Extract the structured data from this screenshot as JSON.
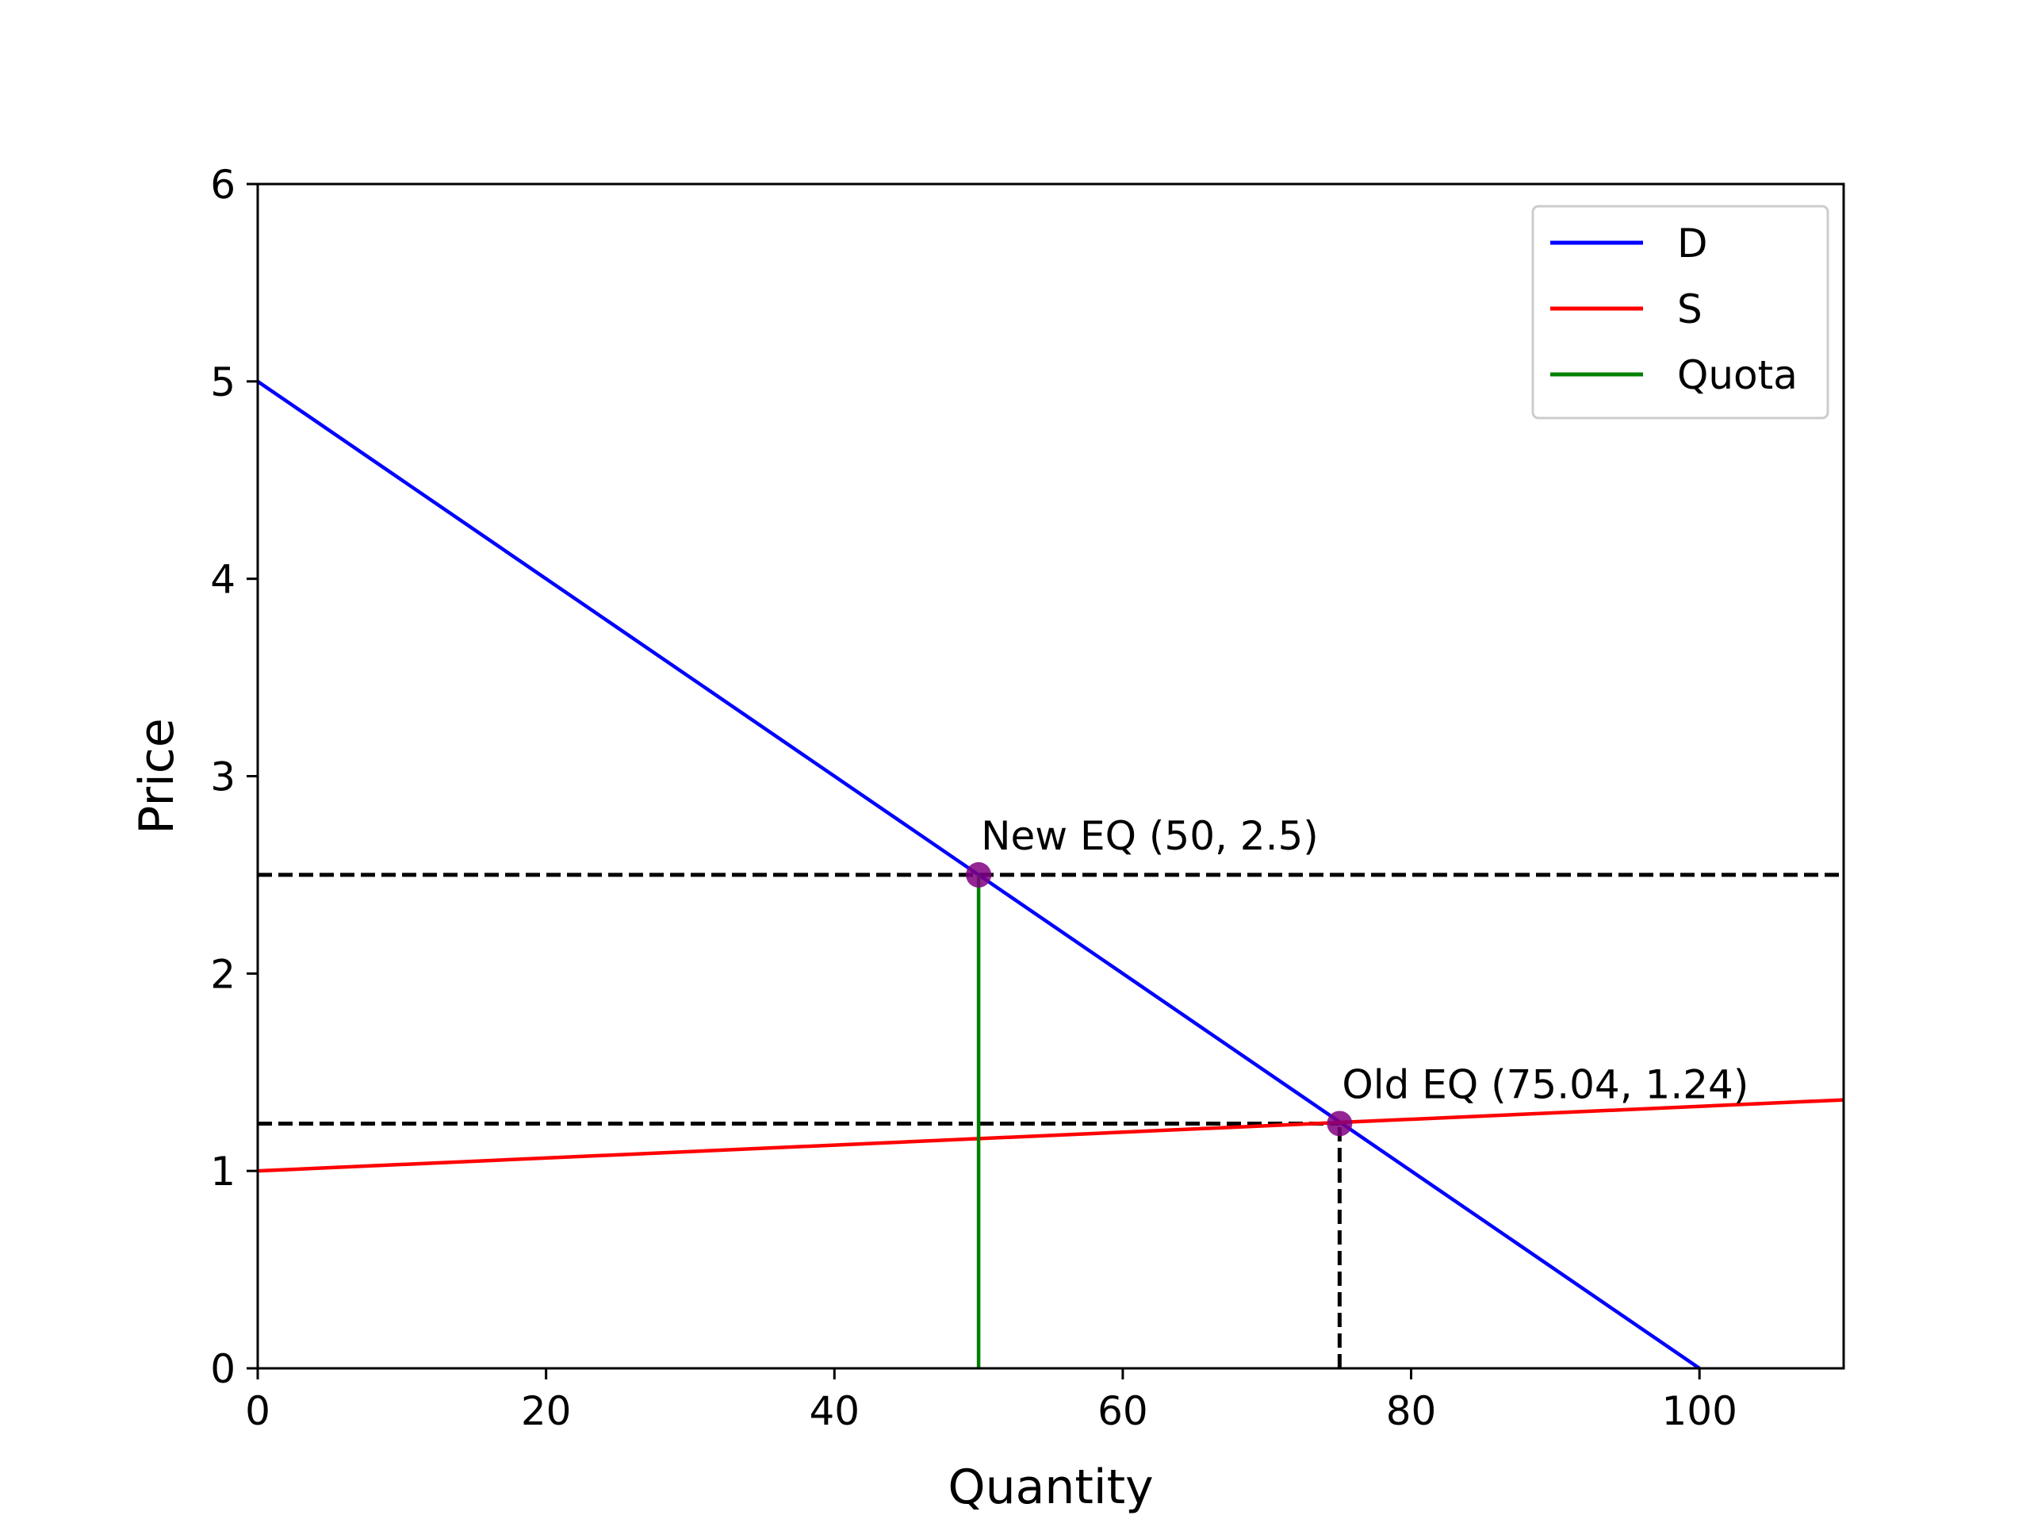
{
  "chart_data": {
    "type": "line",
    "title": "",
    "xlabel": "Quantity",
    "ylabel": "Price",
    "xlim": [
      0,
      110
    ],
    "ylim": [
      0,
      6
    ],
    "xticks": [
      0,
      20,
      40,
      60,
      80,
      100
    ],
    "yticks": [
      0,
      1,
      2,
      3,
      4,
      5,
      6
    ],
    "grid": false,
    "legend_position": "top-right",
    "series": [
      {
        "name": "D",
        "color": "#0000ff",
        "points": [
          [
            0,
            5
          ],
          [
            100,
            0
          ]
        ]
      },
      {
        "name": "S",
        "color": "#ff0000",
        "points": [
          [
            0,
            1
          ],
          [
            110,
            1.36
          ]
        ]
      },
      {
        "name": "Quota",
        "color": "#008000",
        "points": [
          [
            50,
            0
          ],
          [
            50,
            2.5
          ]
        ]
      }
    ],
    "reference_lines": [
      {
        "orientation": "horizontal",
        "y": 2.5,
        "x_from": 0,
        "x_to": 110,
        "style": "dashed",
        "color": "#000000"
      },
      {
        "orientation": "horizontal",
        "y": 1.24,
        "x_from": 0,
        "x_to": 75.04,
        "style": "dashed",
        "color": "#000000"
      },
      {
        "orientation": "vertical",
        "x": 75.04,
        "y_from": 0,
        "y_to": 1.24,
        "style": "dashed",
        "color": "#000000"
      }
    ],
    "points": [
      {
        "x": 50,
        "y": 2.5,
        "label": "New EQ (50, 2.5)",
        "color": "#800080"
      },
      {
        "x": 75.04,
        "y": 1.24,
        "label": "Old EQ (75.04, 1.24)",
        "color": "#800080"
      }
    ]
  }
}
